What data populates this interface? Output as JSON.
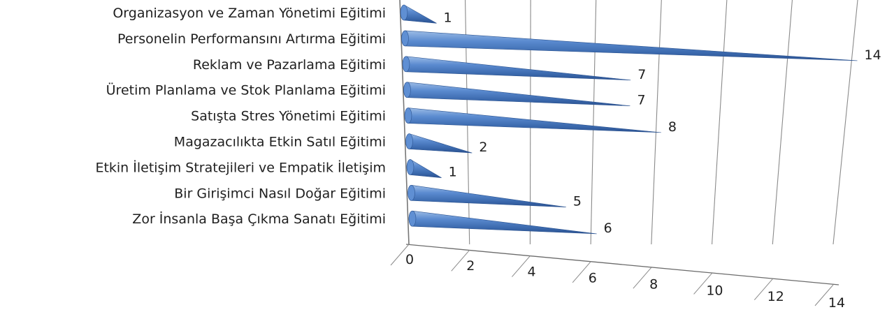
{
  "chart_data": {
    "type": "bar",
    "orientation": "horizontal",
    "bar_shape": "cone",
    "perspective": "3d",
    "bar_color": "#4a7cc0",
    "grid": true,
    "legend": "none",
    "title": "",
    "xlabel": "",
    "ylabel": "",
    "xlim": [
      0,
      14
    ],
    "ticks": [
      "0",
      "2",
      "4",
      "6",
      "8",
      "10",
      "12",
      "14"
    ],
    "categories": [
      "Organizasyon ve Zaman Yönetimi Eğitimi",
      "Personelin Performansını Artırma Eğitimi",
      "Reklam ve Pazarlama Eğitimi",
      "Üretim Planlama ve Stok Planlama Eğitimi",
      "Satışta Stres Yönetimi Eğitimi",
      "Magazacılıkta Etkin Satıl Eğitimi",
      "Etkin İletişim Stratejileri ve Empatik İletişim",
      "Bir Girişimci Nasıl Doğar Eğitimi",
      "Zor İnsanla Başa Çıkma Sanatı Eğitimi"
    ],
    "values": [
      1,
      14,
      7,
      7,
      8,
      2,
      1,
      5,
      6
    ],
    "data_labels": [
      "1",
      "14",
      "7",
      "7",
      "8",
      "2",
      "1",
      "5",
      "6"
    ]
  }
}
